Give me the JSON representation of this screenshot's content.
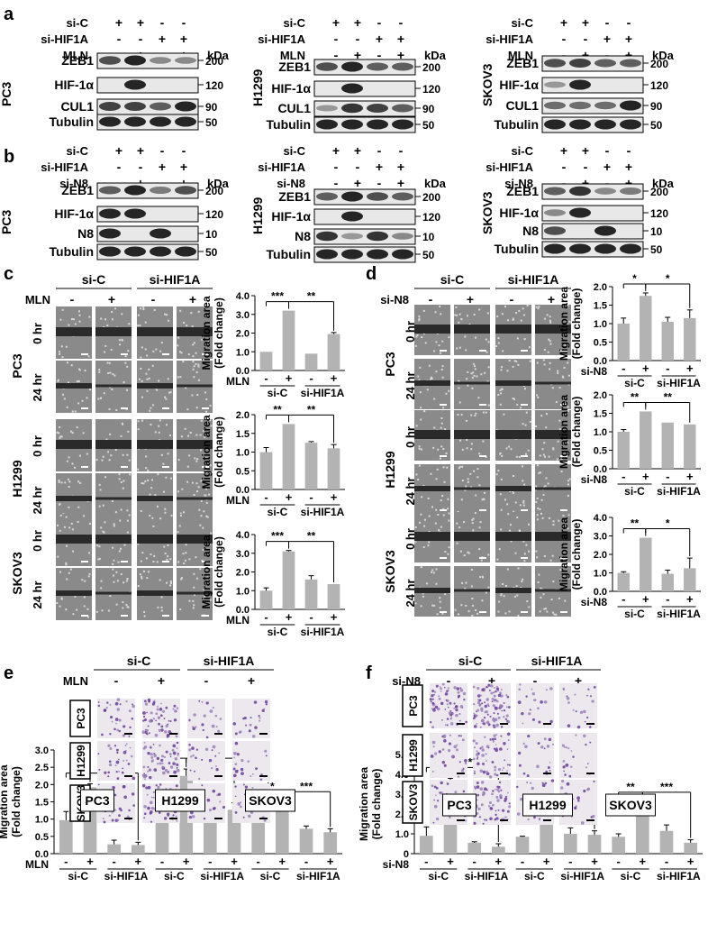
{
  "panel_letters": [
    "a",
    "b",
    "c",
    "d",
    "e",
    "f"
  ],
  "blots": [
    {
      "letter": "a",
      "cell": "PC3",
      "rows": [
        "si-C",
        "si-HIF1A",
        "MLN"
      ],
      "signs": [
        [
          "+",
          "+",
          "-",
          "-"
        ],
        [
          "-",
          "-",
          "+",
          "+"
        ],
        [
          "-",
          "+",
          "-",
          "+"
        ]
      ],
      "bands": [
        "ZEB1",
        "HIF-1α",
        "CUL1",
        "Tubulin"
      ],
      "kda": [
        "200",
        "120",
        "90",
        "50"
      ],
      "kda_label": "kDa"
    },
    {
      "letter": "",
      "cell": "H1299",
      "rows": [
        "si-C",
        "si-HIF1A",
        "MLN"
      ],
      "signs": [
        [
          "+",
          "+",
          "-",
          "-"
        ],
        [
          "-",
          "-",
          "+",
          "+"
        ],
        [
          "-",
          "+",
          "-",
          "+"
        ]
      ],
      "bands": [
        "ZEB1",
        "HIF-1α",
        "CUL1",
        "Tubulin"
      ],
      "kda": [
        "200",
        "120",
        "90",
        "50"
      ],
      "kda_label": "kDa"
    },
    {
      "letter": "",
      "cell": "SKOV3",
      "rows": [
        "si-C",
        "si-HIF1A",
        "MLN"
      ],
      "signs": [
        [
          "+",
          "+",
          "-",
          "-"
        ],
        [
          "-",
          "-",
          "+",
          "+"
        ],
        [
          "-",
          "+",
          "-",
          "+"
        ]
      ],
      "bands": [
        "ZEB1",
        "HIF-1α",
        "CUL1",
        "Tubulin"
      ],
      "kda": [
        "200",
        "120",
        "90",
        "50"
      ],
      "kda_label": "kDa"
    },
    {
      "letter": "b",
      "cell": "PC3",
      "rows": [
        "si-C",
        "si-HIF1A",
        "si-N8"
      ],
      "signs": [
        [
          "+",
          "+",
          "-",
          "-"
        ],
        [
          "-",
          "-",
          "+",
          "+"
        ],
        [
          "-",
          "+",
          "-",
          "+"
        ]
      ],
      "bands": [
        "ZEB1",
        "HIF-1α",
        "N8",
        "Tubulin"
      ],
      "kda": [
        "200",
        "120",
        "10",
        "50"
      ],
      "kda_label": "kDa"
    },
    {
      "letter": "",
      "cell": "H1299",
      "rows": [
        "si-C",
        "si-HIF1A",
        "si-N8"
      ],
      "signs": [
        [
          "+",
          "+",
          "-",
          "-"
        ],
        [
          "-",
          "-",
          "+",
          "+"
        ],
        [
          "-",
          "+",
          "-",
          "+"
        ]
      ],
      "bands": [
        "ZEB1",
        "HIF-1α",
        "N8",
        "Tubulin"
      ],
      "kda": [
        "200",
        "120",
        "10",
        "50"
      ],
      "kda_label": "kDa"
    },
    {
      "letter": "",
      "cell": "SKOV3",
      "rows": [
        "si-C",
        "si-HIF1A",
        "si-N8"
      ],
      "signs": [
        [
          "+",
          "+",
          "-",
          "-"
        ],
        [
          "-",
          "-",
          "+",
          "+"
        ],
        [
          "-",
          "+",
          "-",
          "+"
        ]
      ],
      "bands": [
        "ZEB1",
        "HIF-1α",
        "N8",
        "Tubulin"
      ],
      "kda": [
        "200",
        "120",
        "10",
        "50"
      ],
      "kda_label": "kDa"
    }
  ],
  "wound": [
    {
      "letter": "c",
      "treat": "MLN",
      "groups": [
        "si-C",
        "si-HIF1A"
      ],
      "signs": [
        "-",
        "+",
        "-",
        "+"
      ],
      "cells": [
        "PC3",
        "H1299",
        "SKOV3"
      ],
      "times": [
        "0 hr",
        "24 hr"
      ]
    },
    {
      "letter": "d",
      "treat": "si-N8",
      "groups": [
        "si-C",
        "si-HIF1A"
      ],
      "signs": [
        "-",
        "+",
        "-",
        "+"
      ],
      "cells": [
        "PC3",
        "H1299",
        "SKOV3"
      ],
      "times": [
        "0 hr",
        "24 hr"
      ]
    }
  ],
  "chart_data": [
    {
      "type": "bar",
      "panel": "c",
      "cell": "PC3",
      "ylabel": "Migration area (Fold change)",
      "treat": "MLN",
      "groups": [
        "si-C",
        "si-HIF1A"
      ],
      "signs": [
        "-",
        "+",
        "-",
        "+"
      ],
      "values": [
        1.0,
        3.2,
        0.9,
        1.95
      ],
      "errors": [
        0,
        0,
        0,
        0.08
      ],
      "ylim": [
        0,
        4.0
      ],
      "ticks": [
        "0.0",
        "1.0",
        "2.0",
        "3.0",
        "4.0"
      ],
      "sig": [
        {
          "from": 0,
          "to": 1,
          "text": "***"
        },
        {
          "from": 1,
          "to": 3,
          "text": "**"
        }
      ]
    },
    {
      "type": "bar",
      "panel": "c",
      "cell": "H1299",
      "ylabel": "Migration area (Fold change)",
      "treat": "MLN",
      "groups": [
        "si-C",
        "si-HIF1A"
      ],
      "signs": [
        "-",
        "+",
        "-",
        "+"
      ],
      "values": [
        1.0,
        1.75,
        1.25,
        1.1
      ],
      "errors": [
        0.12,
        0,
        0.03,
        0.1
      ],
      "ylim": [
        0,
        2.0
      ],
      "ticks": [
        "0.0",
        "0.5",
        "1.0",
        "1.5",
        "2.0"
      ],
      "sig": [
        {
          "from": 0,
          "to": 1,
          "text": "**"
        },
        {
          "from": 1,
          "to": 3,
          "text": "**"
        }
      ]
    },
    {
      "type": "bar",
      "panel": "c",
      "cell": "SKOV3",
      "ylabel": "Migration area (Fold change)",
      "treat": "MLN",
      "groups": [
        "si-C",
        "si-HIF1A"
      ],
      "signs": [
        "-",
        "+",
        "-",
        "+"
      ],
      "values": [
        1.0,
        3.1,
        1.6,
        1.35
      ],
      "errors": [
        0.15,
        0.05,
        0.2,
        0
      ],
      "ylim": [
        0,
        4.0
      ],
      "ticks": [
        "0.0",
        "1.0",
        "2.0",
        "3.0",
        "4.0"
      ],
      "sig": [
        {
          "from": 0,
          "to": 1,
          "text": "***"
        },
        {
          "from": 1,
          "to": 3,
          "text": "**"
        }
      ]
    },
    {
      "type": "bar",
      "panel": "d",
      "cell": "PC3",
      "ylabel": "Migration area (Fold change)",
      "treat": "si-N8",
      "groups": [
        "si-C",
        "si-HIF1A"
      ],
      "signs": [
        "-",
        "+",
        "-",
        "+"
      ],
      "values": [
        1.0,
        1.75,
        1.05,
        1.15
      ],
      "errors": [
        0.15,
        0.08,
        0.12,
        0.22
      ],
      "ylim": [
        0,
        2.0
      ],
      "ticks": [
        "0.0",
        "0.5",
        "1.0",
        "1.5",
        "2.0"
      ],
      "sig": [
        {
          "from": 0,
          "to": 1,
          "text": "*"
        },
        {
          "from": 1,
          "to": 3,
          "text": "*"
        }
      ]
    },
    {
      "type": "bar",
      "panel": "d",
      "cell": "H1299",
      "ylabel": "Migration area (Fold change)",
      "treat": "si-N8",
      "groups": [
        "si-C",
        "si-HIF1A"
      ],
      "signs": [
        "-",
        "+",
        "-",
        "+"
      ],
      "values": [
        1.0,
        1.55,
        1.25,
        1.2
      ],
      "errors": [
        0.06,
        0,
        0,
        0
      ],
      "ylim": [
        0,
        2.0
      ],
      "ticks": [
        "0.0",
        "0.5",
        "1.0",
        "1.5",
        "2.0"
      ],
      "sig": [
        {
          "from": 0,
          "to": 1,
          "text": "**"
        },
        {
          "from": 1,
          "to": 3,
          "text": "**"
        }
      ]
    },
    {
      "type": "bar",
      "panel": "d",
      "cell": "SKOV3",
      "ylabel": "Migration area (Fold change)",
      "treat": "si-N8",
      "groups": [
        "si-C",
        "si-HIF1A"
      ],
      "signs": [
        "-",
        "+",
        "-",
        "+"
      ],
      "values": [
        1.0,
        2.9,
        0.95,
        1.25
      ],
      "errors": [
        0.06,
        0,
        0.2,
        0.55
      ],
      "ylim": [
        0,
        4.0
      ],
      "ticks": [
        "0.0",
        "1.0",
        "2.0",
        "3.0",
        "4.0"
      ],
      "sig": [
        {
          "from": 0,
          "to": 1,
          "text": "**"
        },
        {
          "from": 1,
          "to": 3,
          "text": "*"
        }
      ]
    },
    {
      "type": "bar",
      "panel": "e",
      "ylabel": "Migration area (Fold change)",
      "treat": "MLN",
      "cells": [
        "PC3",
        "H1299",
        "SKOV3"
      ],
      "groups": [
        "si-C",
        "si-HIF1A",
        "si-C",
        "si-HIF1A",
        "si-C",
        "si-HIF1A"
      ],
      "signs": [
        "-",
        "+",
        "-",
        "+",
        "-",
        "+",
        "-",
        "+",
        "-",
        "+",
        "-",
        "+"
      ],
      "values": [
        0.97,
        1.92,
        0.27,
        0.25,
        0.97,
        2.25,
        1.0,
        1.27,
        0.95,
        1.43,
        0.72,
        0.62
      ],
      "errors": [
        0.25,
        0.1,
        0.12,
        0.08,
        0.05,
        0.2,
        0.18,
        0.2,
        0.12,
        0.05,
        0.08,
        0.1
      ],
      "ylim": [
        0,
        3.0
      ],
      "ticks": [
        "0.0",
        "0.5",
        "1.0",
        "1.5",
        "2.0",
        "2.5",
        "3.0"
      ],
      "sig": [
        {
          "from": 0,
          "to": 1,
          "text": "***"
        },
        {
          "from": 1,
          "to": 3,
          "text": "***"
        },
        {
          "from": 4,
          "to": 5,
          "text": "***"
        },
        {
          "from": 5,
          "to": 7,
          "text": "***"
        },
        {
          "from": 8,
          "to": 9,
          "text": "**"
        },
        {
          "from": 9,
          "to": 11,
          "text": "***"
        }
      ]
    },
    {
      "type": "bar",
      "panel": "f",
      "ylabel": "Migration area (Fold change)",
      "treat": "si-N8",
      "cells": [
        "PC3",
        "H1299",
        "SKOV3"
      ],
      "groups": [
        "si-C",
        "si-HIF1A",
        "si-C",
        "si-HIF1A",
        "si-C",
        "si-HIF1A"
      ],
      "signs": [
        "-",
        "+",
        "-",
        "+",
        "-",
        "+",
        "-",
        "+",
        "-",
        "+",
        "-",
        "+"
      ],
      "values": [
        0.9,
        3.15,
        0.55,
        0.35,
        0.85,
        1.5,
        1.0,
        0.95,
        0.85,
        2.2,
        1.15,
        0.55
      ],
      "errors": [
        0.45,
        0.65,
        0.05,
        0.15,
        0.03,
        0.12,
        0.3,
        0.2,
        0.15,
        0.35,
        0.3,
        0.15
      ],
      "ylim": [
        0,
        5.0
      ],
      "ticks": [
        "0",
        "1.0",
        "2.0",
        "3.0",
        "4.0",
        "5.0"
      ],
      "sig": [
        {
          "from": 0,
          "to": 1,
          "text": "**"
        },
        {
          "from": 1,
          "to": 3,
          "text": "***"
        },
        {
          "from": 4,
          "to": 5,
          "text": "***"
        },
        {
          "from": 5,
          "to": 7,
          "text": "**"
        },
        {
          "from": 8,
          "to": 9,
          "text": "**"
        },
        {
          "from": 9,
          "to": 11,
          "text": "***"
        }
      ]
    }
  ],
  "transwell": [
    {
      "letter": "e",
      "treat": "MLN",
      "groups": [
        "si-C",
        "si-HIF1A"
      ],
      "signs": [
        "-",
        "+",
        "-",
        "+"
      ],
      "cells": [
        "PC3",
        "H1299",
        "SKOV3"
      ]
    },
    {
      "letter": "f",
      "treat": "si-N8",
      "groups": [
        "si-C",
        "si-HIF1A"
      ],
      "signs": [
        "-",
        "+",
        "-",
        "+"
      ],
      "cells": [
        "PC3",
        "H1299",
        "SKOV3"
      ]
    }
  ],
  "colors": {
    "bar": "#b3b3b3",
    "blot_bg": "#e8e8e8",
    "band": "#1a1a1a",
    "wound": "#8a8a8a",
    "stain": "#6a3d9a"
  }
}
